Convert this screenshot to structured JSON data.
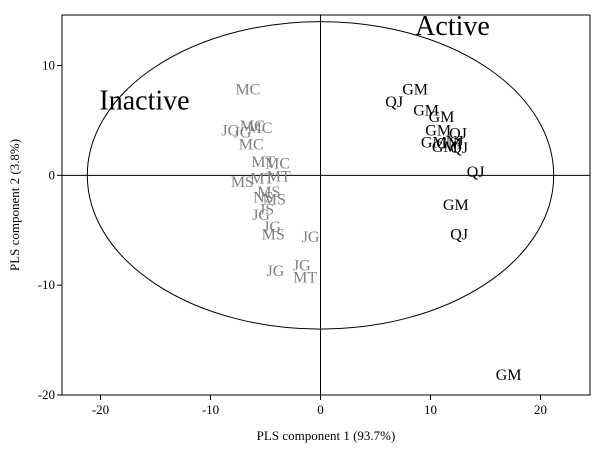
{
  "chart_data": {
    "type": "scatter",
    "xlabel": "PLS component 1 (93.7%)",
    "ylabel": "PLS component 2 (3.8%)",
    "xlim": [
      -23.5,
      24.5
    ],
    "ylim": [
      -20,
      14.6
    ],
    "x_ticks": [
      -20,
      -10,
      0,
      10,
      20
    ],
    "y_ticks": [
      -20,
      -10,
      0,
      10
    ],
    "grid": false,
    "reference_lines": {
      "x": 0,
      "y": 0
    },
    "ellipse": {
      "cx": 0,
      "cy": 0,
      "rx": 21.2,
      "ry": 14
    },
    "region_labels": [
      {
        "text": "Inactive",
        "x": -16,
        "y": 6
      },
      {
        "text": "Active",
        "x": 12,
        "y": 12.8
      }
    ],
    "colors": {
      "inactive": "#808080",
      "active": "#000000",
      "axes": "#000000"
    },
    "series": [
      {
        "name": "Inactive",
        "points": [
          {
            "label": "MC",
            "x": -6.6,
            "y": 7.8
          },
          {
            "label": "JG",
            "x": -8.2,
            "y": 4.1
          },
          {
            "label": "JG",
            "x": -7.1,
            "y": 3.9
          },
          {
            "label": "MC",
            "x": -6.2,
            "y": 4.5
          },
          {
            "label": "MC",
            "x": -5.5,
            "y": 4.3
          },
          {
            "label": "MC",
            "x": -6.3,
            "y": 2.8
          },
          {
            "label": "MT",
            "x": -5.2,
            "y": 1.2
          },
          {
            "label": "MC",
            "x": -3.9,
            "y": 1.1
          },
          {
            "label": "MS",
            "x": -7.1,
            "y": -0.6
          },
          {
            "label": "MT",
            "x": -5.3,
            "y": -0.3
          },
          {
            "label": "MT",
            "x": -3.8,
            "y": -0.1
          },
          {
            "label": "MS",
            "x": -4.7,
            "y": -1.5
          },
          {
            "label": "MS",
            "x": -4.2,
            "y": -2.2
          },
          {
            "label": "NS",
            "x": -5.2,
            "y": -2.0
          },
          {
            "label": "JS",
            "x": -4.9,
            "y": -3.1
          },
          {
            "label": "JG",
            "x": -5.4,
            "y": -3.6
          },
          {
            "label": "JG",
            "x": -4.4,
            "y": -4.7
          },
          {
            "label": "MS",
            "x": -4.3,
            "y": -5.4
          },
          {
            "label": "JG",
            "x": -0.9,
            "y": -5.6
          },
          {
            "label": "JG",
            "x": -1.7,
            "y": -8.2
          },
          {
            "label": "JG",
            "x": -4.1,
            "y": -8.7
          },
          {
            "label": "MT",
            "x": -1.4,
            "y": -9.3
          }
        ]
      },
      {
        "name": "Active",
        "points": [
          {
            "label": "GM",
            "x": 8.6,
            "y": 7.8
          },
          {
            "label": "QJ",
            "x": 6.7,
            "y": 6.7
          },
          {
            "label": "GM",
            "x": 9.6,
            "y": 5.9
          },
          {
            "label": "GM",
            "x": 11.0,
            "y": 5.3
          },
          {
            "label": "GM",
            "x": 10.7,
            "y": 4.1
          },
          {
            "label": "QJ",
            "x": 12.5,
            "y": 3.8
          },
          {
            "label": "GM",
            "x": 10.3,
            "y": 3.0
          },
          {
            "label": "GM",
            "x": 11.3,
            "y": 2.6
          },
          {
            "label": "GM",
            "x": 11.7,
            "y": 2.9
          },
          {
            "label": "QJ",
            "x": 12.6,
            "y": 2.5
          },
          {
            "label": "NJ",
            "x": 12.2,
            "y": 3.1
          },
          {
            "label": "QJ",
            "x": 14.1,
            "y": 0.3
          },
          {
            "label": "GM",
            "x": 12.3,
            "y": -2.7
          },
          {
            "label": "QJ",
            "x": 12.6,
            "y": -5.4
          },
          {
            "label": "GM",
            "x": 17.1,
            "y": -18.2
          }
        ]
      }
    ]
  }
}
